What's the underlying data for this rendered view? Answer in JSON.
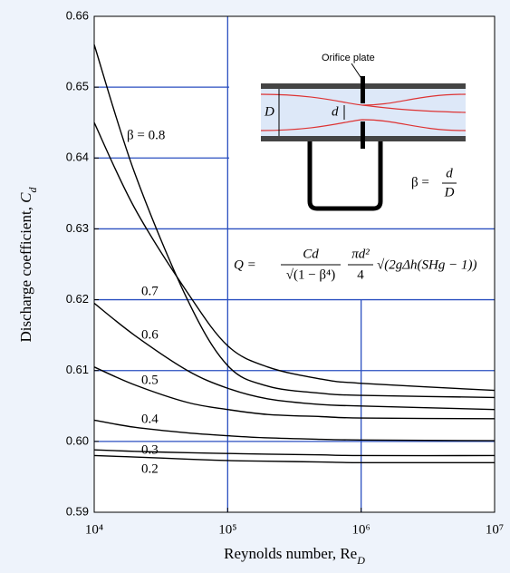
{
  "chart_data": {
    "type": "line",
    "ylabel": {
      "text": "Discharge coefficient, ",
      "symbol": "C",
      "subscript": "d"
    },
    "xlabel": {
      "text": "Reynolds number, Re",
      "subscript": "D"
    },
    "x": [
      10000,
      20000,
      50000,
      100000,
      200000,
      500000,
      1000000,
      10000000
    ],
    "series": [
      {
        "name": "β = 0.8",
        "color": "#000000",
        "values": [
          0.656,
          0.638,
          0.62,
          0.6107,
          0.6078,
          0.6068,
          0.6065,
          0.6062
        ]
      },
      {
        "name": "0.7",
        "color": "#000000",
        "values": [
          0.645,
          0.633,
          0.621,
          0.6135,
          0.6105,
          0.6088,
          0.6082,
          0.6072
        ]
      },
      {
        "name": "0.6",
        "color": "#000000",
        "values": [
          0.6195,
          0.615,
          0.61,
          0.6075,
          0.606,
          0.6052,
          0.605,
          0.6045
        ]
      },
      {
        "name": "0.5",
        "color": "#000000",
        "values": [
          0.6105,
          0.608,
          0.6055,
          0.6045,
          0.6038,
          0.6035,
          0.6033,
          0.6032
        ]
      },
      {
        "name": "0.4",
        "color": "#000000",
        "values": [
          0.603,
          0.602,
          0.6012,
          0.6008,
          0.6005,
          0.6003,
          0.6002,
          0.6001
        ]
      },
      {
        "name": "0.3",
        "color": "#000000",
        "values": [
          0.5988,
          0.5986,
          0.5984,
          0.5983,
          0.5982,
          0.5981,
          0.598,
          0.598
        ]
      },
      {
        "name": "0.2",
        "color": "#000000",
        "values": [
          0.598,
          0.5978,
          0.5975,
          0.5973,
          0.5972,
          0.5971,
          0.597,
          0.597
        ]
      }
    ],
    "xlim": [
      10000,
      10000000
    ],
    "xticks": [
      {
        "value": 10000,
        "label": "10⁴"
      },
      {
        "value": 100000,
        "label": "10⁵"
      },
      {
        "value": 1000000,
        "label": "10⁶"
      },
      {
        "value": 10000000,
        "label": "10⁷"
      }
    ],
    "xscale": "log",
    "ylim": [
      0.59,
      0.66
    ],
    "yticks": [
      0.59,
      {
        "value": 0.6,
        "label": "0.60"
      },
      0.61,
      0.62,
      0.63,
      0.64,
      0.65,
      0.66
    ],
    "grid": true,
    "grid_color": "#2a4fc0",
    "inset": {
      "plate": "Orifice plate",
      "D": "D",
      "d": "d",
      "beta": "β =",
      "beta_num": "d",
      "beta_den": "D"
    },
    "formula": {
      "lhs": "Q =",
      "num1": "Cd",
      "den1": "√(1 − β⁴)",
      "num2": "πd²",
      "den2": "4",
      "root": "√(2gΔh(SHg − 1))"
    }
  }
}
